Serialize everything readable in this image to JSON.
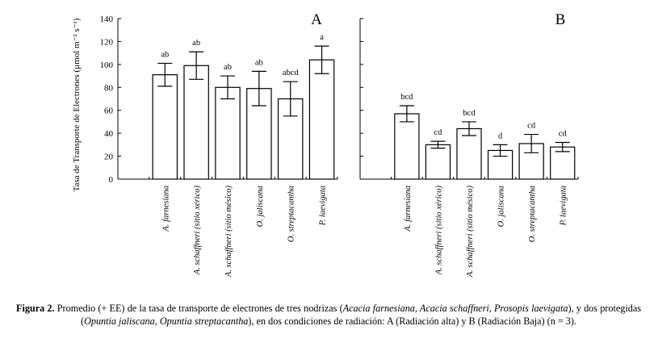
{
  "chart_data": [
    {
      "type": "bar",
      "panel_label": "A",
      "ylabel": "Tasa de Transporte de Electrones (μmol m⁻² s⁻¹)",
      "ylim": [
        0,
        140
      ],
      "yticks": [
        0,
        20,
        40,
        60,
        80,
        100,
        120,
        140
      ],
      "categories": [
        "A. farnesiana",
        "A. schaffneri (sitio xérico)",
        "A. schaffneri (sitio mésico)",
        "O. jaliscana",
        "O. streptacantha",
        "P. laevigata"
      ],
      "values": [
        91,
        99,
        80,
        79,
        70,
        104
      ],
      "errors": [
        10,
        12,
        10,
        15,
        15,
        12
      ],
      "significance": [
        "ab",
        "ab",
        "ab",
        "ab",
        "abcd",
        "a"
      ]
    },
    {
      "type": "bar",
      "panel_label": "B",
      "ylim": [
        0,
        140
      ],
      "categories": [
        "A. farnesiana",
        "A. schaffneri (sitio xérico)",
        "A. schaffneri (sitio mésico)",
        "O. jaliscana",
        "O. streptacantha",
        "P. laevigata"
      ],
      "values": [
        57,
        30,
        44,
        25,
        31,
        28
      ],
      "errors": [
        7,
        3,
        6,
        5,
        8,
        4
      ],
      "significance": [
        "bcd",
        "cd",
        "bcd",
        "d",
        "cd",
        "cd"
      ]
    }
  ],
  "caption": {
    "label": "Figura 2.",
    "segments": [
      {
        "t": " Promedio (+ EE) de la tasa de transporte de electrones de tres nodrizas (",
        "i": false
      },
      {
        "t": "Acacia farnesiana, Acacia schaffneri, Prosopis laevigata",
        "i": true
      },
      {
        "t": "), y dos protegidas (",
        "i": false
      },
      {
        "t": "Opuntia jaliscana, Opuntia streptacantha",
        "i": true
      },
      {
        "t": "), en dos condiciones de radiación: A (Radiación alta) y B (Radiación Baja) (n = 3).",
        "i": false
      }
    ]
  }
}
